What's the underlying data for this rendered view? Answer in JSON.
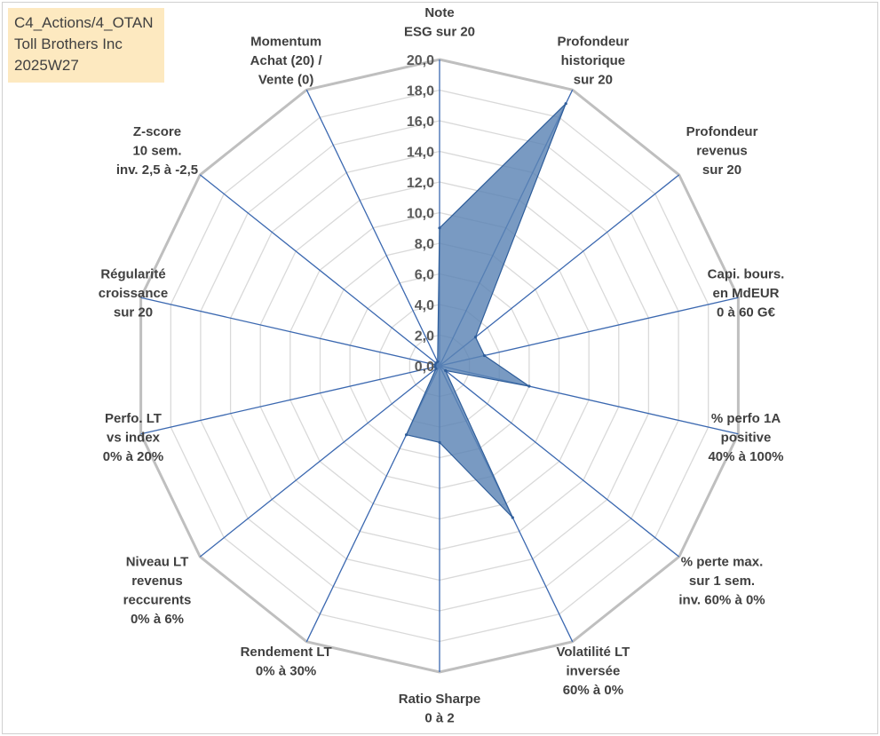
{
  "info_box": {
    "line1": "C4_Actions/4_OTAN",
    "line2": "Toll Brothers Inc",
    "line3": "2025W27"
  },
  "colors": {
    "fill": "#5b84b5",
    "outline": "#2e5d9a",
    "spokes": "#3b68b0",
    "grid_outer": "#bfbfbf",
    "grid_inner": "#d9d9d9"
  },
  "chart_data": {
    "type": "radar",
    "r_range": [
      0,
      20
    ],
    "ticks": [
      "0,0",
      "2,0",
      "4,0",
      "6,0",
      "8,0",
      "10,0",
      "12,0",
      "14,0",
      "16,0",
      "18,0",
      "20,0"
    ],
    "categories": [
      [
        "Note",
        "ESG sur 20"
      ],
      [
        "Profondeur",
        "historique",
        "sur 20"
      ],
      [
        "Profondeur",
        "revenus",
        "sur 20"
      ],
      [
        "Capi. bours.",
        "en MdEUR",
        "0 à 60 G€"
      ],
      [
        "% perfo 1A",
        "positive",
        "40% à 100%"
      ],
      [
        "% perte max.",
        "sur 1 sem.",
        "inv. 60% à 0%"
      ],
      [
        "Volatilité LT",
        "inversée",
        "60% à 0%"
      ],
      [
        "Ratio Sharpe",
        "0 à 2"
      ],
      [
        "Rendement LT",
        "0% à 30%"
      ],
      [
        "Niveau LT",
        "revenus",
        "reccurents",
        "0% à 6%"
      ],
      [
        "Perfo. LT",
        "vs index",
        "0% à 20%"
      ],
      [
        "Régularité",
        "croissance",
        "sur 20"
      ],
      [
        "Z-score",
        "10 sem.",
        "inv. 2,5 à -2,5"
      ],
      [
        "Momentum",
        "Achat (20) /",
        "Vente (0)"
      ]
    ],
    "series": [
      {
        "values": [
          9.0,
          19.0,
          3.0,
          3.0,
          6.0,
          0.5,
          11.0,
          5.0,
          5.0,
          0.3,
          0.3,
          0.3,
          0.3,
          0.3
        ]
      }
    ],
    "grid": true,
    "legend": "none"
  }
}
